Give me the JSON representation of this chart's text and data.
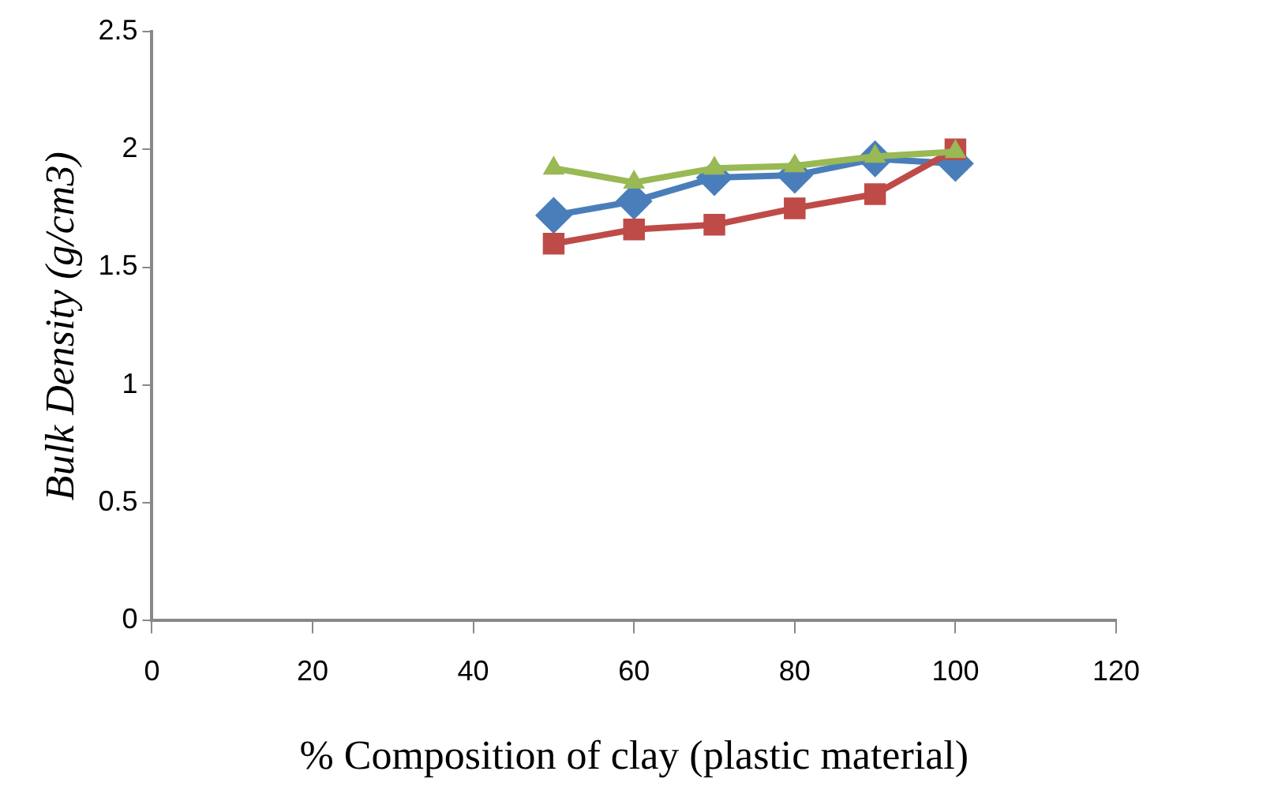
{
  "chart_data": {
    "type": "line",
    "xlabel": "% Composition of clay (plastic material)",
    "ylabel": "Bulk Density (g/cm3)",
    "x": [
      50,
      60,
      70,
      80,
      90,
      100
    ],
    "series": [
      {
        "color": "#4a7ebb",
        "marker": "diamond",
        "values": [
          1.72,
          1.78,
          1.88,
          1.89,
          1.96,
          1.94
        ]
      },
      {
        "color": "#be4b48",
        "marker": "square",
        "values": [
          1.6,
          1.66,
          1.68,
          1.75,
          1.81,
          2.0
        ]
      },
      {
        "color": "#98b954",
        "marker": "triangle",
        "values": [
          1.92,
          1.86,
          1.92,
          1.93,
          1.97,
          1.99
        ]
      }
    ],
    "xlim": [
      0,
      120
    ],
    "xticks": [
      0,
      20,
      40,
      60,
      80,
      100,
      120
    ],
    "ylim": [
      0,
      2.5
    ],
    "yticks": [
      0,
      0.5,
      1,
      1.5,
      2,
      2.5
    ],
    "grid": false,
    "legend": false
  }
}
